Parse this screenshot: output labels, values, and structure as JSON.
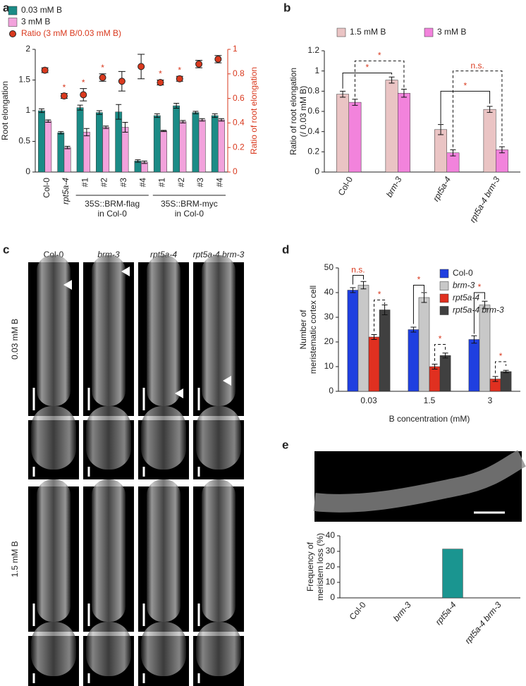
{
  "figure": {
    "panel_labels": [
      "a",
      "b",
      "c",
      "d",
      "e"
    ]
  },
  "micrographs": {
    "columns": [
      "Col-0",
      "brm-3",
      "rpt5a-4",
      "rpt5a-4 brm-3"
    ],
    "rows": [
      "0.03 mM B",
      "1.5 mM B"
    ]
  },
  "chart_data": [
    {
      "type": "bar",
      "ylabel": [
        "Root elongation"
      ],
      "y2label": "Ratio of root elongation",
      "categories": [
        "Col-0",
        "rpt5a-4",
        "#1",
        "#2",
        "#3",
        "#4",
        "#1",
        "#2",
        "#3",
        "#4"
      ],
      "groups": [
        {
          "lines": [
            "35S::BRM-flag",
            "in Col-0"
          ]
        },
        {
          "lines": [
            "35S::BRM-myc",
            "in Col-0"
          ]
        }
      ],
      "series": [
        {
          "name": "0.03 mM B",
          "color": "#1b8b86",
          "values": [
            1.0,
            0.64,
            1.05,
            0.97,
            0.98,
            0.18,
            0.92,
            1.08,
            0.97,
            0.92
          ],
          "errors": [
            0.03,
            0.02,
            0.04,
            0.03,
            0.12,
            0.02,
            0.03,
            0.04,
            0.02,
            0.03
          ]
        },
        {
          "name": "3 mM B",
          "color": "#f2a2dc",
          "values": [
            0.83,
            0.4,
            0.65,
            0.73,
            0.73,
            0.16,
            0.67,
            0.82,
            0.85,
            0.85
          ],
          "errors": [
            0.02,
            0.02,
            0.06,
            0.02,
            0.08,
            0.02,
            0.01,
            0.02,
            0.02,
            0.02
          ]
        },
        {
          "name": "Ratio (3 mM B/0.03 mM B)",
          "type": "scatter",
          "axis": "y2",
          "color": "#d9391e",
          "values": [
            0.83,
            0.62,
            0.63,
            0.77,
            0.74,
            0.86,
            0.73,
            0.76,
            0.88,
            0.92
          ],
          "errors": [
            0.02,
            0.02,
            0.05,
            0.03,
            0.08,
            0.1,
            0.02,
            0.02,
            0.03,
            0.03
          ],
          "significance": [
            null,
            "*",
            "*",
            "*",
            null,
            null,
            "*",
            "*",
            null,
            null
          ]
        }
      ],
      "ylim": [
        0,
        2
      ],
      "yticks": [
        0,
        0.5,
        1,
        1.5,
        2
      ],
      "y2lim": [
        0,
        1
      ],
      "y2ticks": [
        0,
        0.2,
        0.4,
        0.6,
        0.8,
        1
      ]
    },
    {
      "type": "bar",
      "ylabel": [
        "Ratio of root elongation",
        "(/ 0.03 mM B)"
      ],
      "categories": [
        "Col-0",
        "brm-3",
        "rpt5a-4",
        "rpt5a-4 brm-3"
      ],
      "series": [
        {
          "name": "1.5 mM B",
          "color": "#eac4c4",
          "values": [
            0.77,
            0.91,
            0.42,
            0.62
          ],
          "errors": [
            0.03,
            0.03,
            0.05,
            0.03
          ]
        },
        {
          "name": "3 mM B",
          "color": "#f283dc",
          "values": [
            0.69,
            0.78,
            0.19,
            0.22
          ],
          "errors": [
            0.03,
            0.04,
            0.03,
            0.03
          ]
        }
      ],
      "annotations": [
        "*",
        "*",
        "*",
        "n.s."
      ],
      "ylim": [
        0,
        1.2
      ],
      "yticks": [
        0,
        0.2,
        0.4,
        0.6,
        0.8,
        1,
        1.2
      ]
    },
    {
      "type": "bar",
      "ylabel": [
        "Number of",
        "meristematic cortex cell"
      ],
      "xlabel": "B concentration (mM)",
      "categories": [
        "0.03",
        "1.5",
        "3"
      ],
      "series": [
        {
          "name": "Col-0",
          "color": "#1f3fe0",
          "values": [
            41,
            25,
            21
          ],
          "errors": [
            1,
            1,
            1.5
          ]
        },
        {
          "name": "brm-3",
          "color": "#c8c8c8",
          "values": [
            43,
            38,
            35
          ],
          "errors": [
            1.5,
            2,
            1.5
          ]
        },
        {
          "name": "rpt5a-4",
          "color": "#e03020",
          "values": [
            22,
            10,
            5
          ],
          "errors": [
            1,
            1,
            1
          ]
        },
        {
          "name": "rpt5a-4 brm-3",
          "color": "#404040",
          "values": [
            33,
            14.5,
            8
          ],
          "errors": [
            2,
            1,
            0.5
          ]
        }
      ],
      "annotations": [
        "n.s.",
        "*",
        "*",
        "*",
        "*",
        "*"
      ],
      "ylim": [
        0,
        50
      ],
      "yticks": [
        0,
        10,
        20,
        30,
        40,
        50
      ]
    },
    {
      "type": "bar",
      "ylabel": [
        "Frequency of",
        "meristem loss (%)"
      ],
      "categories": [
        "Col-0",
        "brm-3",
        "rpt5a-4",
        "rpt5a-4 brm-3"
      ],
      "values": [
        0,
        0,
        31.5,
        0
      ],
      "color": "#1a9590",
      "ylim": [
        0,
        40
      ],
      "yticks": [
        0,
        10,
        20,
        30,
        40
      ]
    }
  ]
}
